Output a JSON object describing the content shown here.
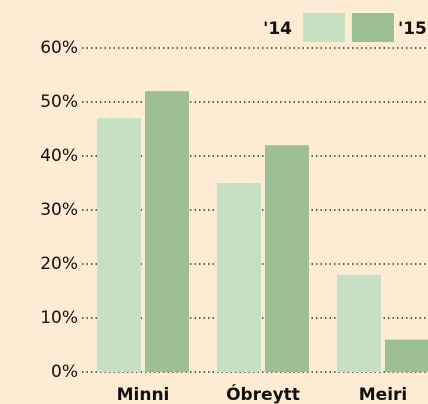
{
  "chart_data": {
    "type": "bar",
    "categories": [
      "Minni",
      "Óbreytt",
      "Meiri"
    ],
    "series": [
      {
        "name": "'14",
        "color": "#c6e0c3",
        "values": [
          47,
          35,
          18
        ]
      },
      {
        "name": "'15",
        "color": "#9dbf96",
        "values": [
          52,
          42,
          6
        ]
      }
    ],
    "ylim": [
      0,
      60
    ],
    "yticks": [
      {
        "value": 0,
        "label": "0%"
      },
      {
        "value": 10,
        "label": "10%"
      },
      {
        "value": 20,
        "label": "20%"
      },
      {
        "value": 30,
        "label": "30%"
      },
      {
        "value": 40,
        "label": "40%"
      },
      {
        "value": 50,
        "label": "50%"
      },
      {
        "value": 60,
        "label": "60%"
      }
    ],
    "grid": true,
    "legend": "top-right"
  }
}
